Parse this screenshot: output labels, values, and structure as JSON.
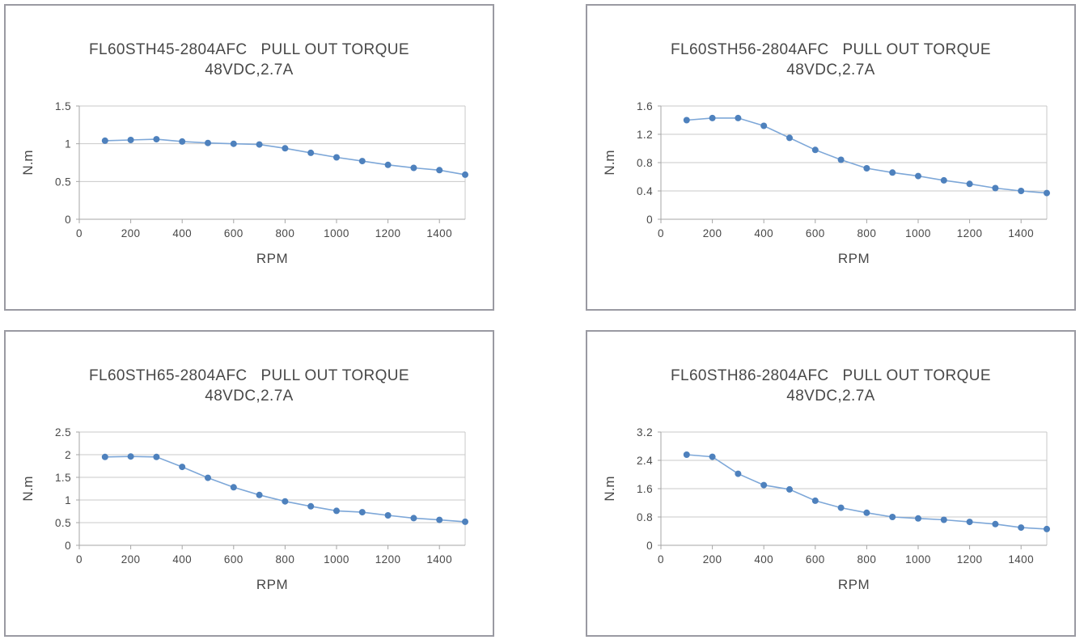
{
  "page": {
    "background": "#ffffff",
    "panel_border_color": "#9a9aa2",
    "text_color": "#484848",
    "gridline_color": "#c8c8c8",
    "axis_color": "#a6a6a6",
    "line_color": "#7da7d8",
    "marker_color": "#4e81bd"
  },
  "chart_data": [
    {
      "type": "line",
      "title": "FL60STH45-2804AFC   PULL OUT TORQUE",
      "subtitle": "48VDC,2.7A",
      "xlabel": "RPM",
      "ylabel": "N.m",
      "legend_position": "none",
      "grid": true,
      "marker": "circle",
      "x": [
        100,
        200,
        300,
        400,
        500,
        600,
        700,
        800,
        900,
        1000,
        1100,
        1200,
        1300,
        1400,
        1500
      ],
      "values": [
        1.04,
        1.05,
        1.06,
        1.03,
        1.01,
        1.0,
        0.99,
        0.94,
        0.88,
        0.82,
        0.77,
        0.72,
        0.68,
        0.65,
        0.59
      ],
      "xlim": [
        0,
        1500
      ],
      "ylim": [
        0,
        1.5
      ],
      "x_ticks": [
        0,
        200,
        400,
        600,
        800,
        1000,
        1200,
        1400
      ],
      "x_tick_labels": [
        "0",
        "200",
        "400",
        "600",
        "800",
        "1000",
        "1200",
        "1400"
      ],
      "y_ticks": [
        0,
        0.5,
        1,
        1.5
      ],
      "y_tick_labels": [
        "0",
        "0.5",
        "1",
        "1.5"
      ]
    },
    {
      "type": "line",
      "title": "FL60STH56-2804AFC   PULL OUT TORQUE",
      "subtitle": "48VDC,2.7A",
      "xlabel": "RPM",
      "ylabel": "N.m",
      "legend_position": "none",
      "grid": true,
      "marker": "circle",
      "x": [
        100,
        200,
        300,
        400,
        500,
        600,
        700,
        800,
        900,
        1000,
        1100,
        1200,
        1300,
        1400,
        1500
      ],
      "values": [
        1.4,
        1.43,
        1.43,
        1.32,
        1.15,
        0.98,
        0.84,
        0.72,
        0.66,
        0.61,
        0.55,
        0.5,
        0.44,
        0.4,
        0.37
      ],
      "xlim": [
        0,
        1500
      ],
      "ylim": [
        0,
        1.6
      ],
      "x_ticks": [
        0,
        200,
        400,
        600,
        800,
        1000,
        1200,
        1400
      ],
      "x_tick_labels": [
        "0",
        "200",
        "400",
        "600",
        "800",
        "1000",
        "1200",
        "1400"
      ],
      "y_ticks": [
        0,
        0.4,
        0.8,
        1.2,
        1.6
      ],
      "y_tick_labels": [
        "0",
        "0.4",
        "0.8",
        "1.2",
        "1.6"
      ]
    },
    {
      "type": "line",
      "title": "FL60STH65-2804AFC   PULL OUT TORQUE",
      "subtitle": "48VDC,2.7A",
      "xlabel": "RPM",
      "ylabel": "N.m",
      "legend_position": "none",
      "grid": true,
      "marker": "circle",
      "x": [
        100,
        200,
        300,
        400,
        500,
        600,
        700,
        800,
        900,
        1000,
        1100,
        1200,
        1300,
        1400,
        1500
      ],
      "values": [
        1.95,
        1.96,
        1.95,
        1.73,
        1.49,
        1.28,
        1.11,
        0.97,
        0.86,
        0.76,
        0.73,
        0.66,
        0.6,
        0.56,
        0.52
      ],
      "xlim": [
        0,
        1500
      ],
      "ylim": [
        0,
        2.5
      ],
      "x_ticks": [
        0,
        200,
        400,
        600,
        800,
        1000,
        1200,
        1400
      ],
      "x_tick_labels": [
        "0",
        "200",
        "400",
        "600",
        "800",
        "1000",
        "1200",
        "1400"
      ],
      "y_ticks": [
        0,
        0.5,
        1,
        1.5,
        2,
        2.5
      ],
      "y_tick_labels": [
        "0",
        "0.5",
        "1",
        "1.5",
        "2",
        "2.5"
      ]
    },
    {
      "type": "line",
      "title": "FL60STH86-2804AFC   PULL OUT TORQUE",
      "subtitle": "48VDC,2.7A",
      "xlabel": "RPM",
      "ylabel": "N.m",
      "legend_position": "none",
      "grid": true,
      "marker": "circle",
      "x": [
        100,
        200,
        300,
        400,
        500,
        600,
        700,
        800,
        900,
        1000,
        1100,
        1200,
        1300,
        1400,
        1500
      ],
      "values": [
        2.56,
        2.5,
        2.02,
        1.7,
        1.58,
        1.26,
        1.06,
        0.92,
        0.8,
        0.76,
        0.72,
        0.66,
        0.6,
        0.5,
        0.46
      ],
      "xlim": [
        0,
        1500
      ],
      "ylim": [
        0,
        3.2
      ],
      "x_ticks": [
        0,
        200,
        400,
        600,
        800,
        1000,
        1200,
        1400
      ],
      "x_tick_labels": [
        "0",
        "200",
        "400",
        "600",
        "800",
        "1000",
        "1200",
        "1400"
      ],
      "y_ticks": [
        0,
        0.8,
        1.6,
        2.4,
        3.2
      ],
      "y_tick_labels": [
        "0",
        "0.8",
        "1.6",
        "2.4",
        "3.2"
      ]
    }
  ]
}
